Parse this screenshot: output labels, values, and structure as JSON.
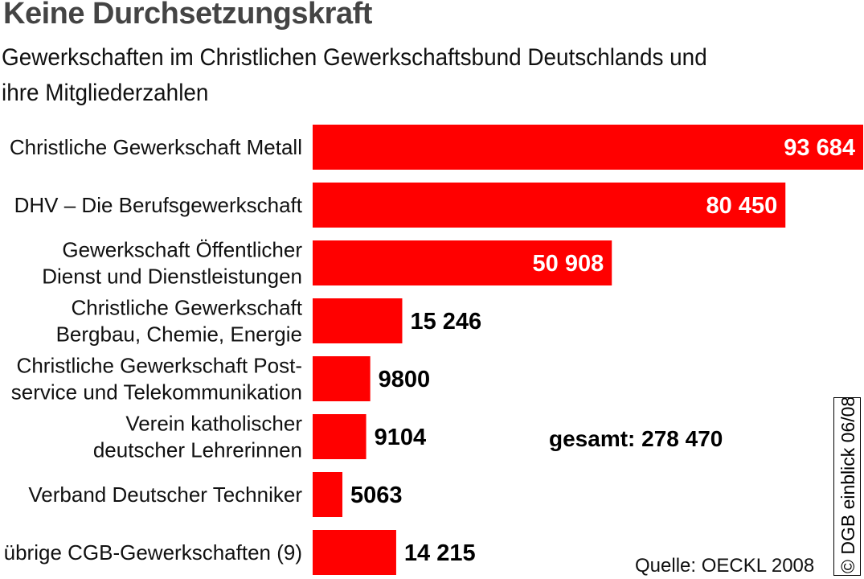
{
  "chart_data": {
    "type": "bar",
    "orientation": "horizontal",
    "title": "Keine Durchsetzungskraft",
    "subtitle": "Gewerkschaften im Christlichen Gewerkschaftsbund Deutschlands und ihre Mitgliederzahlen",
    "categories": [
      [
        "Christliche Gewerkschaft Metall"
      ],
      [
        "DHV – Die Berufsgewerkschaft"
      ],
      [
        "Gewerkschaft Öffentlicher",
        "Dienst und Dienstleistungen"
      ],
      [
        "Christliche Gewerkschaft",
        "Bergbau, Chemie, Energie"
      ],
      [
        "Christliche Gewerkschaft Post-",
        "service und Telekommunikation"
      ],
      [
        "Verein katholischer",
        "deutscher Lehrerinnen"
      ],
      [
        "Verband Deutscher Techniker"
      ],
      [
        "übrige CGB-Gewerkschaften (9)"
      ]
    ],
    "values": [
      93684,
      80450,
      50908,
      15246,
      9800,
      9104,
      5063,
      14215
    ],
    "value_labels": [
      "93 684",
      "80 450",
      "50 908",
      "15 246",
      "9800",
      "9104",
      "5063",
      "14 215"
    ],
    "xlim": [
      0,
      93684
    ],
    "bar_color": "#ff0000",
    "total_label": "gesamt: 278 470",
    "source": "Quelle: OECKL 2008",
    "credit": "© DGB einblick 06/08"
  }
}
